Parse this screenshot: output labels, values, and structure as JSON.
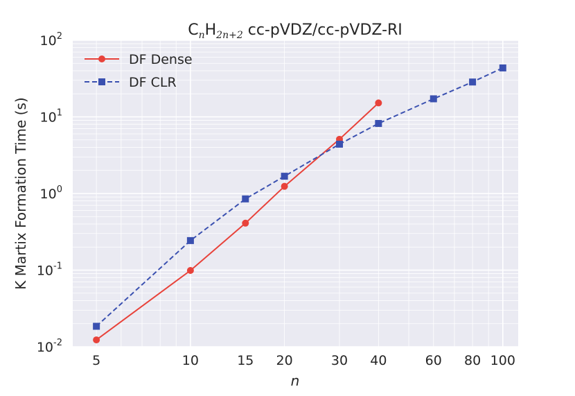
{
  "chart_data": {
    "type": "line",
    "title": {
      "base": "C",
      "sub1": "n",
      "mid": "H",
      "sub2": "2n+2",
      "rest": " cc-pVDZ/cc-pVDZ-RI"
    },
    "xlabel": "n",
    "ylabel": "K Martix Formation Time (s)",
    "xscale": "log",
    "yscale": "log",
    "xlim": [
      4.2,
      112
    ],
    "ylim": [
      0.01,
      100
    ],
    "xticks": [
      5,
      10,
      15,
      20,
      30,
      40,
      60,
      80,
      100
    ],
    "xtick_labels": [
      "5",
      "10",
      "15",
      "20",
      "30",
      "40",
      "60",
      "80",
      "100"
    ],
    "yticks": [
      {
        "value": 100,
        "base": "10",
        "exp": "2"
      },
      {
        "value": 10,
        "base": "10",
        "exp": "1"
      },
      {
        "value": 1,
        "base": "10",
        "exp": "0"
      },
      {
        "value": 0.1,
        "base": "10",
        "exp": "-1"
      },
      {
        "value": 0.01,
        "base": "10",
        "exp": "-2"
      }
    ],
    "grid": true,
    "legend_position": "top-left",
    "series": [
      {
        "name": "DF Dense",
        "color": "#e8423a",
        "marker": "circle",
        "linestyle": "solid",
        "x": [
          5,
          10,
          15,
          20,
          30,
          40
        ],
        "values": [
          0.0123,
          0.099,
          0.41,
          1.24,
          5.1,
          15.2
        ]
      },
      {
        "name": "DF CLR",
        "color": "#3a50b0",
        "marker": "square",
        "linestyle": "dashed",
        "x": [
          5,
          10,
          15,
          20,
          30,
          40,
          60,
          80,
          100
        ],
        "values": [
          0.0185,
          0.243,
          0.85,
          1.68,
          4.4,
          8.2,
          17.2,
          28.5,
          43.5
        ]
      }
    ]
  }
}
